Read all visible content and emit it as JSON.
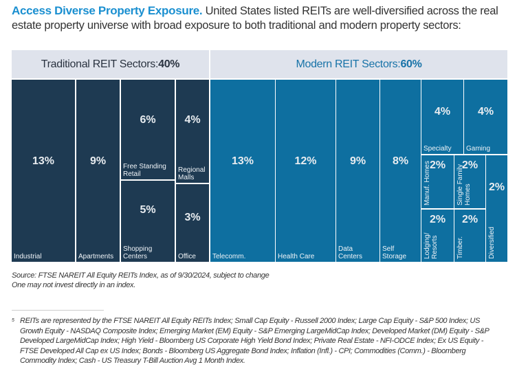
{
  "intro": {
    "headline": "Access Diverse Property Exposure.",
    "text": " United States listed REITs are well-diversified across the real estate property universe with broad exposure to both traditional and modern property sectors:"
  },
  "chart_data": {
    "type": "treemap",
    "groups": [
      {
        "label": "Traditional REIT Sectors: ",
        "value": "40%",
        "color": "#1e3a52",
        "cells": [
          {
            "name": "Industrial",
            "value": "13%"
          },
          {
            "name": "Apartments",
            "value": "9%"
          },
          {
            "name": "Free Standing Retail",
            "value": "6%"
          },
          {
            "name": "Shopping Centers",
            "value": "5%"
          },
          {
            "name": "Regional Malls",
            "value": "4%"
          },
          {
            "name": "Office",
            "value": "3%"
          }
        ]
      },
      {
        "label": "Modern REIT Sectors: ",
        "value": "60%",
        "color": "#0e6fa0",
        "cells": [
          {
            "name": "Telecomm.",
            "value": "13%"
          },
          {
            "name": "Health Care",
            "value": "12%"
          },
          {
            "name": "Data Centers",
            "value": "9%"
          },
          {
            "name": "Self Storage",
            "value": "8%"
          },
          {
            "name": "Specialty",
            "value": "4%"
          },
          {
            "name": "Gaming",
            "value": "4%"
          },
          {
            "name": "Manuf. Homes",
            "value": "2%"
          },
          {
            "name": "Single Family Homes",
            "value": "2%"
          },
          {
            "name": "Lodging/ Resorts",
            "value": "2%"
          },
          {
            "name": "Timber.",
            "value": "2%"
          },
          {
            "name": "Diversified",
            "value": "2%"
          }
        ]
      }
    ]
  },
  "source": {
    "line1": "Source: FTSE NAREIT All Equity REITs Index, as of 9/30/2024, subject to change",
    "line2": "One may not invest directly in an index."
  },
  "footnote": {
    "marker": "5",
    "text": "REITs are represented by the FTSE NAREIT All Equity REITs Index; Small Cap Equity - Russell 2000 Index; Large Cap Equity - S&P 500 Index; US Growth Equity - NASDAQ Composite Index; Emerging Market (EM) Equity - S&P Emerging LargeMidCap Index; Developed Market (DM) Equity - S&P Developed LargeMidCap Index; High Yield - Bloomberg US Corporate High Yield Bond Index; Private Real Estate - NFI-ODCE Index; Ex US Equity - FTSE Developed All Cap ex US Index; Bonds - Bloomberg US Aggregate Bond Index; Inflation (Infl.) - CPI; Commodities (Comm.) - Bloomberg Commodity Index; Cash - US Treasury T-Bill Auction Avg 1 Month Index."
  }
}
